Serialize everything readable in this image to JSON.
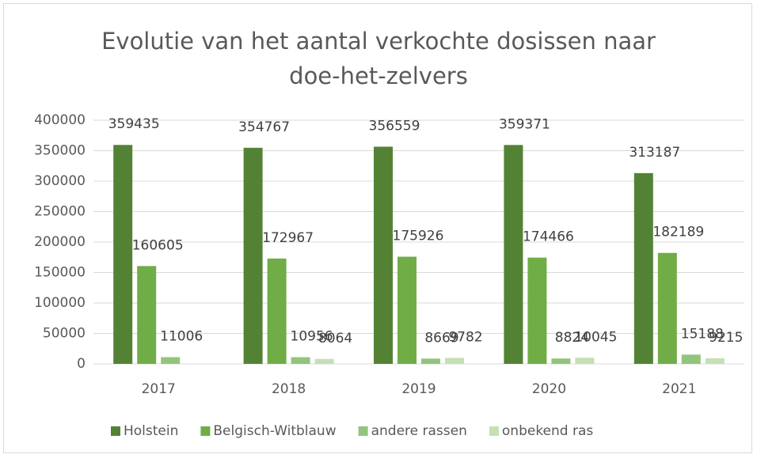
{
  "chart_data": {
    "type": "bar",
    "title": "Evolutie van het aantal verkochte dosissen naar doe-het-zelvers",
    "categories": [
      "2017",
      "2018",
      "2019",
      "2020",
      "2021"
    ],
    "series": [
      {
        "name": "Holstein",
        "color": "#548235",
        "values": [
          359435,
          354767,
          356559,
          359371,
          313187
        ]
      },
      {
        "name": "Belgisch-Witblauw",
        "color": "#70ad47",
        "values": [
          160605,
          172967,
          175926,
          174466,
          182189
        ]
      },
      {
        "name": "andere rassen",
        "color": "#93c47d",
        "values": [
          11006,
          10956,
          8669,
          8824,
          15188
        ]
      },
      {
        "name": "onbekend ras",
        "color": "#c5e0b4",
        "values": [
          null,
          8064,
          9782,
          10045,
          9215
        ]
      }
    ],
    "ylim": [
      0,
      400000
    ],
    "yticks": [
      0,
      50000,
      100000,
      150000,
      200000,
      250000,
      300000,
      350000,
      400000
    ],
    "grid": true,
    "legend": "bottom"
  }
}
